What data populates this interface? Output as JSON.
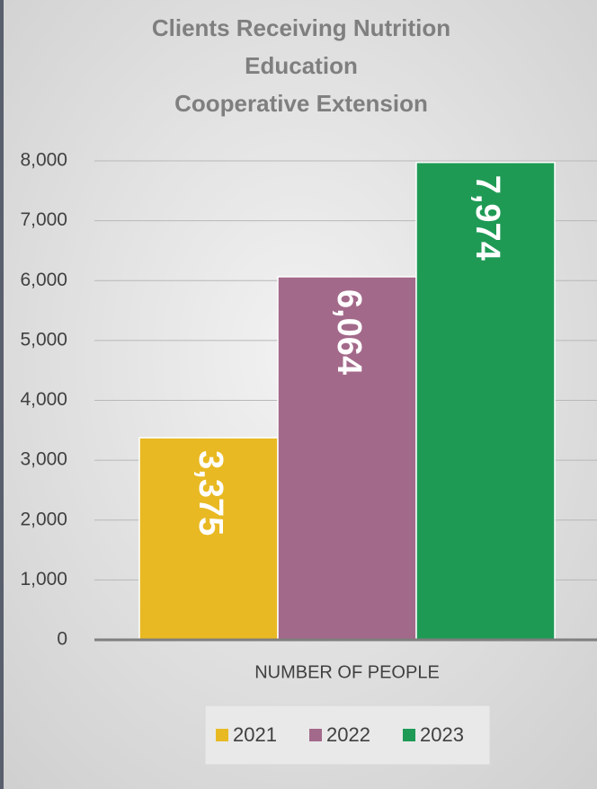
{
  "chart_data": {
    "type": "bar",
    "title": [
      "Clients Receiving Nutrition",
      "Education",
      "Cooperative Extension"
    ],
    "categories": [
      "NUMBER OF PEOPLE"
    ],
    "series": [
      {
        "name": "2021",
        "color": "#e8b923",
        "values": [
          3375
        ],
        "value_labels": [
          "3,375"
        ]
      },
      {
        "name": "2022",
        "color": "#a3698a",
        "values": [
          6064
        ],
        "value_labels": [
          "6,064"
        ]
      },
      {
        "name": "2023",
        "color": "#1f9a55",
        "values": [
          7974
        ],
        "value_labels": [
          "7,974"
        ]
      }
    ],
    "ylim": [
      0,
      8000
    ],
    "yticks": [
      0,
      {
        "value": 1000,
        "label": "1,000"
      },
      {
        "value": 2000,
        "label": "2,000"
      },
      {
        "value": 3000,
        "label": "3,000"
      },
      {
        "value": 4000,
        "label": "4,000"
      },
      {
        "value": 5000,
        "label": "5,000"
      },
      {
        "value": 6000,
        "label": "6,000"
      },
      {
        "value": 7000,
        "label": "7,000"
      },
      {
        "value": 8000,
        "label": "8,000"
      }
    ],
    "grid": true,
    "legend": "bottom"
  }
}
